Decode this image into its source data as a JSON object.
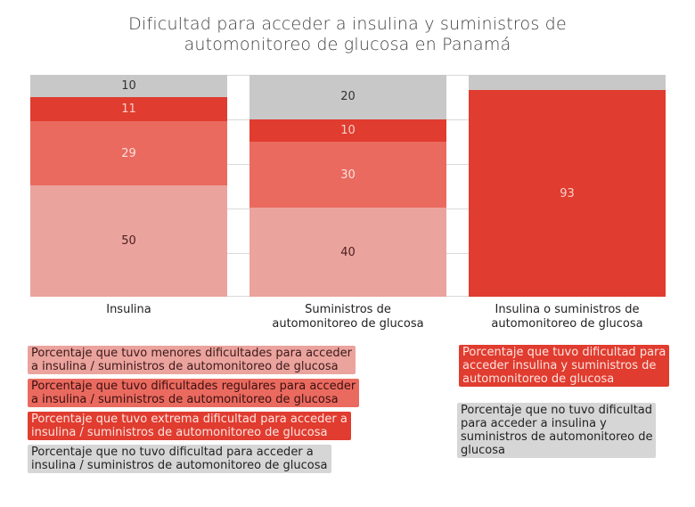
{
  "title": {
    "line1": "Dificultad para acceder a insulina y suministros de",
    "line2": "automonitoreo de glucosa en Panamá"
  },
  "colors": {
    "no_difficulty": "#c8c8c8",
    "extreme": "#e03c2f",
    "regular": "#ea6a5f",
    "minor": "#eba39d",
    "gridline": "#d9d9d9"
  },
  "chart_data": {
    "type": "bar",
    "stacked": true,
    "title": "Dificultad para acceder a insulina y suministros de automonitoreo de glucosa en Panamá",
    "xlabel": "",
    "ylabel": "",
    "ylim": [
      0,
      100
    ],
    "grid": true,
    "categories": [
      "Insulina",
      "Suministros de automonitoreo de glucosa",
      "Insulina o suministros de automonitoreo de glucosa"
    ],
    "series": [
      {
        "name": "Porcentaje que tuvo menores dificultades para acceder a insulina / suministros de automonitoreo de glucosa",
        "values": [
          50,
          40,
          null
        ]
      },
      {
        "name": "Porcentaje que tuvo dificultades regulares para acceder a insulina / suministros de automonitoreo de glucosa",
        "values": [
          29,
          30,
          null
        ]
      },
      {
        "name": "Porcentaje que tuvo extrema dificultad para acceder a insulina / suministros de automonitoreo de glucosa",
        "values": [
          11,
          10,
          null
        ]
      },
      {
        "name": "Porcentaje que no tuvo dificultad para acceder a insulina / suministros de automonitoreo de glucosa",
        "values": [
          10,
          20,
          null
        ]
      },
      {
        "name": "Porcentaje que tuvo dificultad para acceder insulina y suministros de automonitoreo de glucosa",
        "values": [
          null,
          null,
          93
        ]
      },
      {
        "name": "Porcentaje que no tuvo dificultad para acceder a insulina y suministros de automonitoreo de glucosa",
        "values": [
          null,
          null,
          7
        ]
      }
    ]
  },
  "bars": [
    {
      "label_line1": "Insulina",
      "label_line2": "",
      "segments": [
        {
          "value": "10",
          "pct": 10,
          "color": "#c8c8c8",
          "text": "#333333"
        },
        {
          "value": "11",
          "pct": 11,
          "color": "#e03c2f",
          "text": "#f6d0cc"
        },
        {
          "value": "29",
          "pct": 29,
          "color": "#ea6a5f",
          "text": "#fbe0dc"
        },
        {
          "value": "50",
          "pct": 50,
          "color": "#eba39d",
          "text": "#4a2020"
        }
      ]
    },
    {
      "label_line1": "Suministros de",
      "label_line2": "automonitoreo de glucosa",
      "segments": [
        {
          "value": "20",
          "pct": 20,
          "color": "#c8c8c8",
          "text": "#333333"
        },
        {
          "value": "10",
          "pct": 10,
          "color": "#e03c2f",
          "text": "#f6d0cc"
        },
        {
          "value": "30",
          "pct": 30,
          "color": "#ea6a5f",
          "text": "#fbe0dc"
        },
        {
          "value": "40",
          "pct": 40,
          "color": "#eba39d",
          "text": "#4a2020"
        }
      ]
    },
    {
      "label_line1": "Insulina o suministros de",
      "label_line2": "automonitoreo de glucosa",
      "segments": [
        {
          "value": "",
          "pct": 7,
          "color": "#c8c8c8",
          "text": "#333333"
        },
        {
          "value": "93",
          "pct": 93,
          "color": "#e03c2f",
          "text": "#f6d0cc"
        }
      ]
    }
  ],
  "legend_left": [
    {
      "line1": "Porcentaje que tuvo menores dificultades para acceder",
      "line2": "a insulina / suministros de automonitoreo de glucosa",
      "bg": "#eba39d",
      "fg": "#3a1a1a"
    },
    {
      "line1": "Porcentaje que tuvo dificultades regulares para acceder",
      "line2": "a insulina / suministros de automonitoreo de glucosa",
      "bg": "#ea6a5f",
      "fg": "#3a1010"
    },
    {
      "line1": "Porcentaje que tuvo extrema dificultad para acceder a",
      "line2": "insulina / suministros de automonitoreo de glucosa",
      "bg": "#e03c2f",
      "fg": "#fde4e0"
    },
    {
      "line1": "Porcentaje que no tuvo dificultad para acceder a",
      "line2": "insulina / suministros de automonitoreo de glucosa",
      "bg": "#d6d6d6",
      "fg": "#222222"
    }
  ],
  "legend_right": [
    {
      "lines": [
        "Porcentaje que tuvo dificultad para",
        "acceder insulina y suministros de",
        "automonitoreo de glucosa"
      ],
      "bg": "#e03c2f",
      "fg": "#fde4e0"
    },
    {
      "lines": [
        "Porcentaje que no tuvo dificultad",
        "para acceder a insulina y",
        "suministros de automonitoreo de",
        "glucosa"
      ],
      "bg": "#d6d6d6",
      "fg": "#222222"
    }
  ]
}
